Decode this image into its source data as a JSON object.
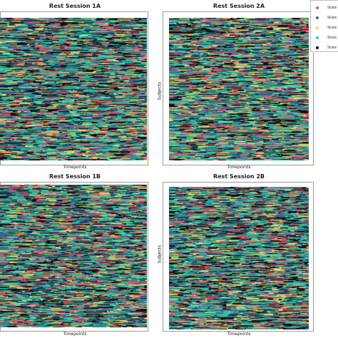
{
  "panels": [
    {
      "title": "Rest Session 1A",
      "xlabel": "Timepoints",
      "ylabel": ""
    },
    {
      "title": "Rest Session 2A",
      "xlabel": "Timepoints",
      "ylabel": "Subjects"
    },
    {
      "title": "Rest Session 1B",
      "xlabel": "Timepoints",
      "ylabel": ""
    },
    {
      "title": "Rest Session 2B",
      "xlabel": "Timepoints",
      "ylabel": "Subjects"
    }
  ],
  "legend": {
    "entries": [
      {
        "label": "State",
        "color": "#d9596a"
      },
      {
        "label": "State",
        "color": "#2f6f8f"
      },
      {
        "label": "State",
        "color": "#e8d870"
      },
      {
        "label": "State",
        "color": "#36c9a8"
      },
      {
        "label": "State",
        "color": "#111111"
      }
    ]
  },
  "chart_data": [
    {
      "type": "heatmap",
      "title": "Rest Session 1A",
      "xlabel": "Timepoints",
      "ylabel": "",
      "grid": false,
      "legend_position": "top-right"
    },
    {
      "type": "heatmap",
      "title": "Rest Session 2A",
      "xlabel": "Timepoints",
      "ylabel": "Subjects",
      "grid": false,
      "legend_position": "top-right"
    },
    {
      "type": "heatmap",
      "title": "Rest Session 1B",
      "xlabel": "Timepoints",
      "ylabel": "",
      "grid": false,
      "legend_position": "top-right"
    },
    {
      "type": "heatmap",
      "title": "Rest Session 2B",
      "xlabel": "Timepoints",
      "ylabel": "Subjects",
      "grid": false,
      "legend_position": "top-right"
    }
  ]
}
